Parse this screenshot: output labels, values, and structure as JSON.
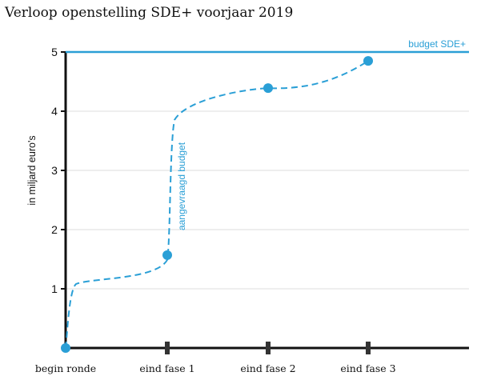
{
  "title": "Verloop openstelling SDE+ voorjaar 2019",
  "colors": {
    "accent": "#2a9fd6",
    "axis": "#111111",
    "grid": "#dcdcdc"
  },
  "chart_data": {
    "type": "line",
    "title": "Verloop openstelling SDE+ voorjaar 2019",
    "xlabel": "",
    "ylabel": "in miljard euro's",
    "ylim": [
      0,
      5
    ],
    "yticks": [
      1,
      2,
      3,
      4,
      5
    ],
    "categories": [
      "begin ronde",
      "eind fase 1",
      "eind fase 2",
      "eind fase 3"
    ],
    "grid": true,
    "series": [
      {
        "name": "aangevraagd budget",
        "style": "dashed",
        "values": [
          0,
          1.57,
          4.39,
          4.85
        ]
      }
    ],
    "reference_lines": [
      {
        "label": "budget SDE+",
        "value": 5
      }
    ]
  }
}
